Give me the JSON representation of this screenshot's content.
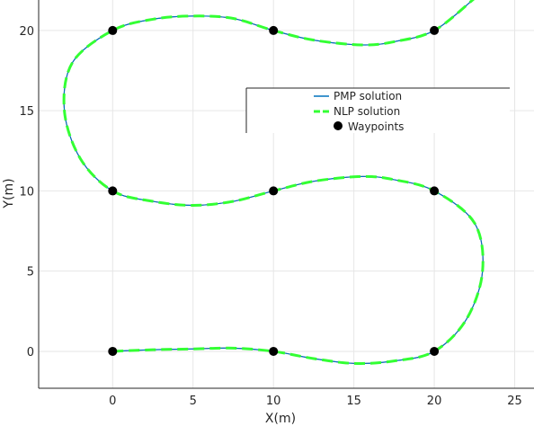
{
  "chart_data": {
    "type": "line",
    "xlabel": "X(m)",
    "ylabel": "Y(m)",
    "xlim": [
      -4.6,
      26.2
    ],
    "ylim": [
      -2.3,
      21.9
    ],
    "xticks": [
      0,
      5,
      10,
      15,
      20,
      25
    ],
    "yticks": [
      0,
      5,
      10,
      15,
      20
    ],
    "grid": true,
    "legend_position": "upper-right",
    "legend": [
      {
        "label": "PMP solution",
        "color": "#0072BD",
        "style": "solid"
      },
      {
        "label": "NLP solution",
        "color": "#33FF33",
        "style": "dashed"
      },
      {
        "label": "Waypoints",
        "color": "#000000",
        "style": "marker"
      }
    ],
    "series": [
      {
        "name": "PMP solution",
        "x": [
          0,
          2.5,
          5,
          7.5,
          10,
          12.5,
          15,
          17.5,
          20,
          22,
          23,
          22.5,
          20,
          17.5,
          15.5,
          12.5,
          10,
          7.5,
          5,
          2.5,
          0,
          -2,
          -3,
          -2.5,
          0,
          2.5,
          5,
          7.5,
          10,
          12.5,
          15.5,
          17.5,
          20,
          22.5
        ],
        "y": [
          0,
          0.1,
          0.15,
          0.2,
          0,
          -0.45,
          -0.75,
          -0.6,
          0,
          2,
          5,
          8,
          10,
          10.7,
          10.9,
          10.6,
          10,
          9.35,
          9.1,
          9.35,
          10,
          12,
          15,
          18,
          20,
          20.7,
          20.9,
          20.75,
          20,
          19.4,
          19.1,
          19.3,
          20,
          22
        ]
      },
      {
        "name": "NLP solution",
        "x": [
          0,
          2.5,
          5,
          7.5,
          10,
          12.5,
          15,
          17.5,
          20,
          22,
          23,
          22.5,
          20,
          17.5,
          15.5,
          12.5,
          10,
          7.5,
          5,
          2.5,
          0,
          -2,
          -3,
          -2.5,
          0,
          2.5,
          5,
          7.5,
          10,
          12.5,
          15.5,
          17.5,
          20,
          22.5
        ],
        "y": [
          0,
          0.1,
          0.15,
          0.2,
          0,
          -0.45,
          -0.75,
          -0.6,
          0,
          2,
          5,
          8,
          10,
          10.7,
          10.9,
          10.6,
          10,
          9.35,
          9.1,
          9.35,
          10,
          12,
          15,
          18,
          20,
          20.7,
          20.9,
          20.75,
          20,
          19.4,
          19.1,
          19.3,
          20,
          22
        ]
      }
    ],
    "waypoints": {
      "name": "Waypoints",
      "x": [
        0,
        10,
        20,
        0,
        10,
        20,
        0,
        10,
        20
      ],
      "y": [
        0,
        0,
        0,
        10,
        10,
        10,
        20,
        20,
        20
      ]
    },
    "colors": {
      "pmp": "#0072BD",
      "nlp": "#33FF33",
      "underlay": "#D62728",
      "grid": "#E6E6E6",
      "axis": "#262626",
      "waypoint": "#000000"
    }
  }
}
